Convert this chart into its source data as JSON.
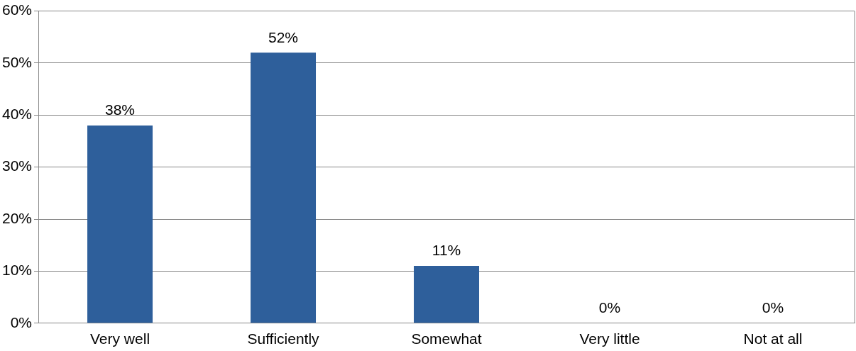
{
  "chart_data": {
    "type": "bar",
    "categories": [
      "Very well",
      "Sufficiently",
      "Somewhat",
      "Very little",
      "Not at all"
    ],
    "values": [
      38,
      52,
      11,
      0,
      0
    ],
    "value_labels": [
      "38%",
      "52%",
      "11%",
      "0%",
      "0%"
    ],
    "color": "#2e5f9b",
    "ylim": [
      0,
      60
    ],
    "yticks": [
      {
        "value": 0,
        "label": "0%"
      },
      {
        "value": 10,
        "label": "10%"
      },
      {
        "value": 20,
        "label": "20%"
      },
      {
        "value": 30,
        "label": "30%"
      },
      {
        "value": 40,
        "label": "40%"
      },
      {
        "value": 50,
        "label": "50%"
      },
      {
        "value": 60,
        "label": "60%"
      }
    ],
    "grid": "y",
    "legend": false
  }
}
